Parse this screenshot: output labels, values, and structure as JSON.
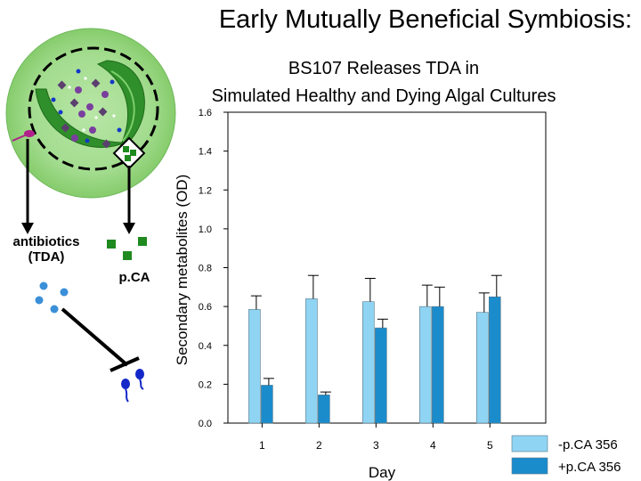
{
  "slide": {
    "title": "Early Mutually Beneficial Symbiosis:"
  },
  "diagram": {
    "label_antibiotics_line1": "antibiotics",
    "label_antibiotics_line2": "(TDA)",
    "label_pca": "p.CA",
    "colors": {
      "cell_glow": "#8fd07a",
      "chloroplast": "#2f8f2a",
      "diamond": "#5b3f6e",
      "purple": "#7a3f9e",
      "blue_dot": "#1438c8",
      "green_square": "#1f8a1f",
      "tda": "#3a8fd8",
      "bacteria_magenta": "#b0208a",
      "bacteria_blue": "#1428c8"
    }
  },
  "chart_data": {
    "type": "bar",
    "title_line1": "BS107 Releases TDA in",
    "title_line2": "Simulated Healthy and Dying Algal Cultures",
    "xlabel": "Day",
    "ylabel": "Secondary metabolites (OD)",
    "ylim": [
      0,
      1.6
    ],
    "yticks": [
      "0.0",
      "0.2",
      "0.4",
      "0.6",
      "0.8",
      "1.0",
      "1.2",
      "1.4",
      "1.6"
    ],
    "categories": [
      "1",
      "2",
      "3",
      "4",
      "5"
    ],
    "series": [
      {
        "name": "-p.CA 356",
        "color": "#8fd4f2",
        "values": [
          0.585,
          0.64,
          0.625,
          0.6,
          0.57
        ],
        "errors": [
          0.07,
          0.12,
          0.12,
          0.11,
          0.1
        ]
      },
      {
        "name": "+p.CA 356",
        "color": "#1a8ccc",
        "values": [
          0.195,
          0.145,
          0.49,
          0.6,
          0.65
        ],
        "errors": [
          0.035,
          0.015,
          0.045,
          0.1,
          0.11
        ]
      }
    ],
    "legend_position": "bottom-right",
    "grid": false
  }
}
